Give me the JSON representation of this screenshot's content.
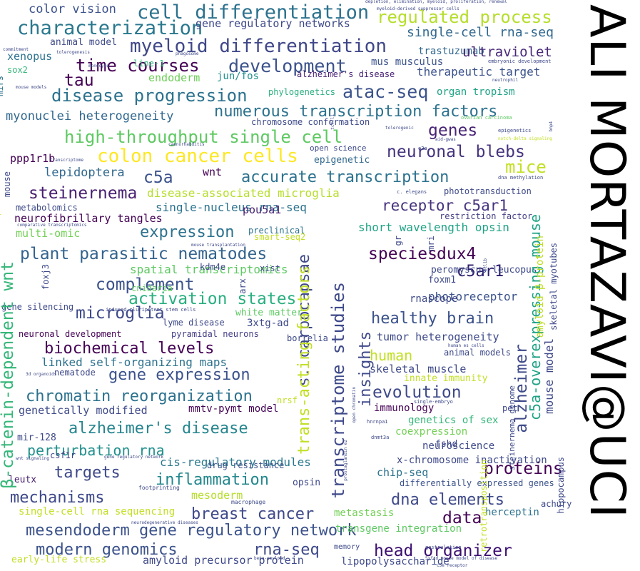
{
  "title": "ALI MORTAZAVI@UCI",
  "words": [
    {
      "t": "color vision",
      "c": "#3b518b"
    },
    {
      "t": "cell differentiation",
      "c": "#2c728e"
    },
    {
      "t": "regulated process",
      "c": "#b5de2b"
    },
    {
      "t": "characterization",
      "c": "#2a788e"
    },
    {
      "t": "gene regulatory networks",
      "c": "#3e4989"
    },
    {
      "t": "single-cell rna-seq",
      "c": "#31688e"
    },
    {
      "t": "myeloid differentiation",
      "c": "#3f4788"
    },
    {
      "t": "animal model",
      "c": "#3e4a89"
    },
    {
      "t": "trastuzumab",
      "c": "#31688e"
    },
    {
      "t": "ultraviolet",
      "c": "#482878"
    },
    {
      "t": "time courses",
      "c": "#440154"
    },
    {
      "t": "development",
      "c": "#3b528b"
    },
    {
      "t": "mus musculus",
      "c": "#3b528b"
    },
    {
      "t": "xenopus",
      "c": "#2c728e"
    },
    {
      "t": "therapeutic target",
      "c": "#3b528b"
    },
    {
      "t": "sox2",
      "c": "#35b779"
    },
    {
      "t": "tau",
      "c": "#440154"
    },
    {
      "t": "endoderm",
      "c": "#6ece58"
    },
    {
      "t": "jun/fos",
      "c": "#21908d"
    },
    {
      "t": "alzheimer's disease",
      "c": "#482173"
    },
    {
      "t": "disease progression",
      "c": "#2c728e"
    },
    {
      "t": "atac-seq",
      "c": "#3b528b"
    },
    {
      "t": "organ tropism",
      "c": "#20a386"
    },
    {
      "t": "phylogenetics",
      "c": "#29af7f"
    },
    {
      "t": "numerous transcription factors",
      "c": "#2c728e"
    },
    {
      "t": "myonuclei heterogeneity",
      "c": "#31688e"
    },
    {
      "t": "chromosome conformation",
      "c": "#3e4a89"
    },
    {
      "t": "genes",
      "c": "#482475"
    },
    {
      "t": "high-throughput single cell",
      "c": "#5ec962"
    },
    {
      "t": "colon cancer cells",
      "c": "#fde725"
    },
    {
      "t": "neuronal blebs",
      "c": "#46337e"
    },
    {
      "t": "open science",
      "c": "#3e4a89"
    },
    {
      "t": "ppp1r1b",
      "c": "#440154"
    },
    {
      "t": "epigenetic",
      "c": "#31688e"
    },
    {
      "t": "c5a",
      "c": "#3b528b"
    },
    {
      "t": "mice",
      "c": "#c2df23"
    },
    {
      "t": "lepidoptera",
      "c": "#31688e"
    },
    {
      "t": "wnt",
      "c": "#440154"
    },
    {
      "t": "accurate transcription",
      "c": "#2c728e"
    },
    {
      "t": "steinernema",
      "c": "#481f70"
    },
    {
      "t": "disease-associated microglia",
      "c": "#b5de2b"
    },
    {
      "t": "receptor c5ar1",
      "c": "#46337e"
    },
    {
      "t": "metabolomics",
      "c": "#3e4a89"
    },
    {
      "t": "single-nucleus rna-seq",
      "c": "#2c728e"
    },
    {
      "t": "pou5a1",
      "c": "#482475"
    },
    {
      "t": "neurofibrillary tangles",
      "c": "#440154"
    },
    {
      "t": "restriction factor",
      "c": "#433e85"
    },
    {
      "t": "multi-omic",
      "c": "#73d056"
    },
    {
      "t": "short wavelength opsin",
      "c": "#20a386"
    },
    {
      "t": "expression",
      "c": "#2c728e"
    },
    {
      "t": "preclinical",
      "c": "#2c728e"
    },
    {
      "t": "smart-seq2",
      "c": "#c2df23"
    },
    {
      "t": "plant parasitic nematodes",
      "c": "#33638d"
    },
    {
      "t": "species",
      "c": "#440154"
    },
    {
      "t": "dux4",
      "c": "#440154"
    },
    {
      "t": "spatial transcriptomics",
      "c": "#5ec962"
    },
    {
      "t": "c5ar1",
      "c": "#2d1e6d"
    },
    {
      "t": "complement",
      "c": "#3b518b"
    },
    {
      "t": "activation states",
      "c": "#29af7f"
    },
    {
      "t": "photoreceptor",
      "c": "#3b528b"
    },
    {
      "t": "microglia",
      "c": "#3e4989"
    },
    {
      "t": "white matter",
      "c": "#5ec962"
    },
    {
      "t": "healthy brain",
      "c": "#3b528b"
    },
    {
      "t": "lyme disease",
      "c": "#3e4989"
    },
    {
      "t": "3xtg-ad",
      "c": "#3e4989"
    },
    {
      "t": "pyramidal neurons",
      "c": "#433e85"
    },
    {
      "t": "tumor heterogeneity",
      "c": "#3e4989"
    },
    {
      "t": "neuronal development",
      "c": "#440154"
    },
    {
      "t": "biochemical levels",
      "c": "#440154"
    },
    {
      "t": "human",
      "c": "#c2df23"
    },
    {
      "t": "animal models",
      "c": "#3e4989"
    },
    {
      "t": "linked self-organizing maps",
      "c": "#2c728e"
    },
    {
      "t": "skeletal muscle",
      "c": "#3e4989"
    },
    {
      "t": "nematode",
      "c": "#3e4989"
    },
    {
      "t": "gene expression",
      "c": "#3b528b"
    },
    {
      "t": "innate immunity",
      "c": "#c2df23"
    },
    {
      "t": "chromatin reorganization",
      "c": "#2c728e"
    },
    {
      "t": "evolution",
      "c": "#3e4989"
    },
    {
      "t": "genetically modified",
      "c": "#3e4a89"
    },
    {
      "t": "mmtv-pymt model",
      "c": "#440154"
    },
    {
      "t": "alzheimer's disease",
      "c": "#25858e"
    },
    {
      "t": "immunology",
      "c": "#440154"
    },
    {
      "t": "genetics of sex",
      "c": "#35b779"
    },
    {
      "t": "mir-128",
      "c": "#3e4a89"
    },
    {
      "t": "coexpression",
      "c": "#73d056"
    },
    {
      "t": "perturbation rna",
      "c": "#21908d"
    },
    {
      "t": "neuroscience",
      "c": "#3e4a89"
    },
    {
      "t": "cis-regulatory modules",
      "c": "#2a788e"
    },
    {
      "t": "drug resistance",
      "c": "#3b528b"
    },
    {
      "t": "targets",
      "c": "#3e4989"
    },
    {
      "t": "x-chromosome inactivation",
      "c": "#3e4989"
    },
    {
      "t": "chip-seq",
      "c": "#2c728e"
    },
    {
      "t": "proteins",
      "c": "#440154"
    },
    {
      "t": "leutx",
      "c": "#481f70"
    },
    {
      "t": "inflammation",
      "c": "#23888e"
    },
    {
      "t": "differentially expressed genes",
      "c": "#3b528b"
    },
    {
      "t": "mechanisms",
      "c": "#3e4989"
    },
    {
      "t": "mesoderm",
      "c": "#b5de2b"
    },
    {
      "t": "dna elements",
      "c": "#3e4989"
    },
    {
      "t": "breast cancer",
      "c": "#3e4989"
    },
    {
      "t": "single-cell rna sequencing",
      "c": "#c2df23"
    },
    {
      "t": "data",
      "c": "#440154"
    },
    {
      "t": "metastasis",
      "c": "#73d056"
    },
    {
      "t": "herceptin",
      "c": "#2c728e"
    },
    {
      "t": "mesendoderm gene regulatory network",
      "c": "#3b528b"
    },
    {
      "t": "transgene integration",
      "c": "#5ec962"
    },
    {
      "t": "modern genomics",
      "c": "#3b528b"
    },
    {
      "t": "rna-seq",
      "c": "#3e4989"
    },
    {
      "t": "head organizer",
      "c": "#3b0f70"
    },
    {
      "t": "amyloid precursor protein",
      "c": "#3e4989"
    },
    {
      "t": "lipopolysaccharide",
      "c": "#3e4989"
    },
    {
      "t": "early-life stress",
      "c": "#c2df23"
    },
    {
      "t": "memory",
      "c": "#3e4989"
    },
    {
      "t": "csf1r",
      "c": "#3e4989"
    },
    {
      "t": "opsin",
      "c": "#3e4989"
    },
    {
      "t": "footprinting",
      "c": "#3e4989"
    },
    {
      "t": "macrophage",
      "c": "#3e4989"
    },
    {
      "t": "line-1",
      "c": "#35b779"
    },
    {
      "t": "commitment",
      "c": "#3e4989"
    },
    {
      "t": "tolerogenesis",
      "c": "#3e4989"
    },
    {
      "t": "monocyte",
      "c": "#3e4989"
    },
    {
      "t": "phagosome",
      "c": "#3e4989"
    },
    {
      "t": "mouse models",
      "c": "#3e4989"
    },
    {
      "t": "depletion, elimination, myeloid, proliferation, renewal",
      "c": "#3e4989"
    },
    {
      "t": "myeloid-derived suppressor cells",
      "c": "#3e4989"
    },
    {
      "t": "embryonic development",
      "c": "#3e4989"
    },
    {
      "t": "neutrophil",
      "c": "#3e4989"
    },
    {
      "t": "tolerogenic",
      "c": "#3e4989"
    },
    {
      "t": "ovarian carcinoma",
      "c": "#5ec962"
    },
    {
      "t": "aid-gwas",
      "c": "#3e4989"
    },
    {
      "t": "e2a",
      "c": "#3e4989"
    },
    {
      "t": "epigenetics",
      "c": "#3e4989"
    },
    {
      "t": "notch-delta signaling",
      "c": "#c2df23"
    },
    {
      "t": "caenorhabditis",
      "c": "#3e4989"
    },
    {
      "t": "transcriptome",
      "c": "#3e4989"
    },
    {
      "t": "dna methylation",
      "c": "#3e4989"
    },
    {
      "t": "c. elegans",
      "c": "#3e4989"
    },
    {
      "t": "phototransduction",
      "c": "#3e4989"
    },
    {
      "t": "comparative transcriptomics",
      "c": "#3e4989"
    },
    {
      "t": "mouse transplantation",
      "c": "#3e4989"
    },
    {
      "t": "cnidaria",
      "c": "#5ec962"
    },
    {
      "t": "peromyscus leucopus",
      "c": "#3e4989"
    },
    {
      "t": "kdm4e",
      "c": "#3e4989"
    },
    {
      "t": "xist",
      "c": "#3e4989"
    },
    {
      "t": "gene silencing",
      "c": "#3e4989"
    },
    {
      "t": "induced pluripotent stem cells",
      "c": "#3e4989"
    },
    {
      "t": "foxm1",
      "c": "#3e4989"
    },
    {
      "t": "rnascope",
      "c": "#3e4989"
    },
    {
      "t": "borrelia",
      "c": "#3e4989"
    },
    {
      "t": "human es cells",
      "c": "#3e4989"
    },
    {
      "t": "nrsf",
      "c": "#c2df23"
    },
    {
      "t": "pet",
      "c": "#3e4989"
    },
    {
      "t": "single-embryo",
      "c": "#3e4989"
    },
    {
      "t": "hnrnpa1",
      "c": "#3e4989"
    },
    {
      "t": "dnmt3a",
      "c": "#3e4989"
    },
    {
      "t": "fshd",
      "c": "#3e4989"
    },
    {
      "t": "neurodegenerative diseases",
      "c": "#3e4989"
    },
    {
      "t": "beta-amyloid",
      "c": "#3e4989"
    },
    {
      "t": "gastrulation",
      "c": "#3e4989"
    },
    {
      "t": "gene regulatory network",
      "c": "#3e4989"
    },
    {
      "t": "wnt signaling",
      "c": "#3e4989"
    },
    {
      "t": "3d organoids",
      "c": "#3e4989"
    },
    {
      "t": "achury",
      "c": "#3e4989"
    },
    {
      "t": "c5e receptor",
      "c": "#3e4989"
    },
    {
      "t": "5xfad mouse model of disease",
      "c": "#3e4989"
    },
    {
      "t": "mirs",
      "c": "#2c728e"
    },
    {
      "t": "mouse",
      "c": "#3e4989"
    },
    {
      "t": "β-catenin-dependent wnt",
      "c": "#35b779"
    },
    {
      "t": "foxj3",
      "c": "#3e4989"
    },
    {
      "t": "productive streak",
      "c": "#c2df23"
    },
    {
      "t": "s. carpocapsae",
      "c": "#3e4989"
    },
    {
      "t": "transcriptome studies",
      "c": "#3e4989"
    },
    {
      "t": "trans-acting factors",
      "c": "#c2df23"
    },
    {
      "t": "insights",
      "c": "#3e4989"
    },
    {
      "t": "arx",
      "c": "#3e4989"
    },
    {
      "t": "gr",
      "c": "#3e4989"
    },
    {
      "t": "mri",
      "c": "#3e4989"
    },
    {
      "t": "open chromatin",
      "c": "#3e4989"
    },
    {
      "t": "prostaglandin e2",
      "c": "#3e4989"
    },
    {
      "t": "alzheimer",
      "c": "#3e4989"
    },
    {
      "t": "c5a-overexpressing mouse",
      "c": "#20a386"
    },
    {
      "t": "mouse model",
      "c": "#3e4989"
    },
    {
      "t": "amyloid β-protein",
      "c": "#c2df23"
    },
    {
      "t": "skeletal myotubes",
      "c": "#3e4989"
    },
    {
      "t": "bcl1b",
      "c": "#3e4989"
    },
    {
      "t": "steinernema genome",
      "c": "#3e4989"
    },
    {
      "t": "retrotransposition",
      "c": "#c2df23"
    },
    {
      "t": "tcf7l1",
      "c": "#3e4989"
    },
    {
      "t": "hippocampus",
      "c": "#3e4989"
    },
    {
      "t": "bmp4",
      "c": "#3e4989"
    }
  ]
}
